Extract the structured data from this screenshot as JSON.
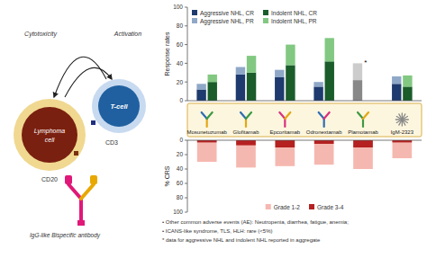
{
  "chart_data": [
    {
      "type": "bar",
      "stacked": true,
      "ylabel": "Response rates",
      "categories": [
        "Mosunetuzumab",
        "Glofitamab",
        "Epcoritamab",
        "Odronextamab",
        "Plamotamab",
        "IgM-2323"
      ],
      "series": [
        {
          "name": "Aggressive NHL, CR",
          "color": "#1e3a6e",
          "values": [
            12,
            28,
            25,
            15,
            null,
            18
          ]
        },
        {
          "name": "Aggressive NHL, PR",
          "color": "#8fa8c8",
          "values": [
            6,
            8,
            8,
            5,
            null,
            8
          ]
        },
        {
          "name": "Indolent NHL, CR",
          "color": "#1a5c2a",
          "values": [
            20,
            30,
            38,
            42,
            null,
            15
          ]
        },
        {
          "name": "Indolent NHL, PR",
          "color": "#82c882",
          "values": [
            8,
            18,
            22,
            25,
            null,
            12
          ]
        },
        {
          "color": "#888888",
          "values": [
            null,
            null,
            null,
            null,
            22,
            null
          ]
        },
        {
          "color": "#cccccc",
          "values": [
            null,
            null,
            null,
            null,
            18,
            null
          ]
        }
      ],
      "ylim": [
        0,
        100
      ],
      "yticks": [
        0,
        20,
        40,
        60,
        80,
        100
      ],
      "grid": false,
      "legend": "upper left",
      "annotations": [
        "Lymphoma",
        "cell",
        "CD20",
        "T-cell",
        "CD3",
        "Cytotoxicity",
        "Activation",
        "IgG-like Bispecific antibody",
        {
          "text": "*",
          "category": "Plamotamab"
        }
      ]
    },
    {
      "type": "bar",
      "stacked": false,
      "ylabel": "% CRS",
      "categories": [
        "Mosunetuzumab",
        "Glofitamab",
        "Epcoritamab",
        "Odronextamab",
        "Plamotamab",
        "IgM-2323"
      ],
      "series": [
        {
          "name": "Grade 1-2",
          "color": "#f5b8b0",
          "values": [
            30,
            38,
            36,
            34,
            40,
            25
          ]
        },
        {
          "name": "Grade 3-4",
          "color": "#b52020",
          "values": [
            3,
            7,
            10,
            5,
            10,
            3
          ]
        }
      ],
      "ylim": [
        100,
        0
      ],
      "yticks": [
        0,
        20,
        40,
        60,
        80,
        100
      ],
      "grid": false,
      "legend": "lower center",
      "tick_labels": "y",
      "annotations": [
        "• Other common adverse events (AE): Neutropenia, diarrhea, fatigue, anemia;",
        "• ICANS-like syndrome, TLS, HLH: rare (<5%)",
        "* data for aggressive NHL and indolent NHL reported in aggregate"
      ]
    }
  ]
}
